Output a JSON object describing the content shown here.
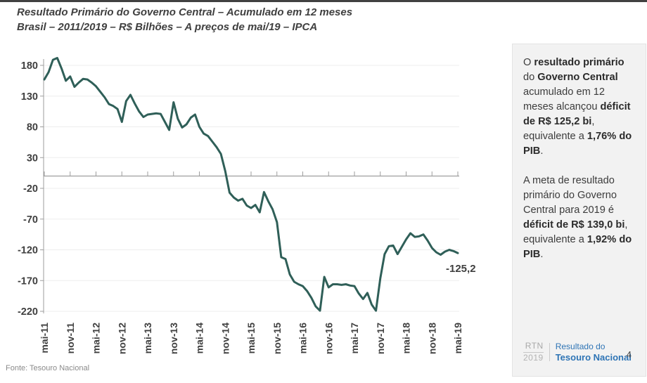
{
  "title": {
    "line1": "Resultado Primário do Governo Central – Acumulado em 12 meses",
    "line2": "Brasil – 2011/2019 – R$ Bilhões – A preços de mai/19 – IPCA"
  },
  "footer": {
    "source": "Fonte: Tesouro Nacional"
  },
  "page": {
    "number": "4"
  },
  "logo": {
    "acronym": "RTN",
    "year": "2019",
    "label_line1": "Resultado do",
    "label_line2": "Tesouro Nacional"
  },
  "sidebar": {
    "paragraphs": [
      {
        "segments": [
          {
            "t": "O ",
            "b": false
          },
          {
            "t": "resultado primário",
            "b": true
          },
          {
            "t": " do ",
            "b": false
          },
          {
            "t": "Governo Central",
            "b": true
          },
          {
            "t": " acumulado em 12 meses alcançou ",
            "b": false
          },
          {
            "t": "déficit de R$ 125,2 bi",
            "b": true
          },
          {
            "t": ", equivalente a ",
            "b": false
          },
          {
            "t": "1,76% do PIB",
            "b": true
          },
          {
            "t": ".",
            "b": false
          }
        ]
      },
      {
        "segments": [
          {
            "t": "A meta de resultado primário do Governo Central para 2019 é ",
            "b": false
          },
          {
            "t": "déficit de R$ 139,0 bi",
            "b": true
          },
          {
            "t": ", equivalente a ",
            "b": false
          },
          {
            "t": "1,92% do PIB",
            "b": true
          },
          {
            "t": ".",
            "b": false
          }
        ]
      }
    ]
  },
  "chart_data": {
    "type": "line",
    "title": "Resultado Primário do Governo Central – Acumulado em 12 meses",
    "subtitle": "Brasil – 2011/2019 – R$ Bilhões – A preços de mai/19 – IPCA",
    "ylabel": "R$ Bilhões (preços de mai/19 – IPCA)",
    "xlabel": "",
    "grid": "horizontal-faint",
    "legend": "none",
    "ylim": [
      -220,
      200
    ],
    "y_ticks": [
      180,
      130,
      80,
      30,
      -20,
      -70,
      -120,
      -170,
      -220
    ],
    "x_tick_labels": [
      "mai-11",
      "nov-11",
      "mai-12",
      "nov-12",
      "mai-13",
      "nov-13",
      "mai-14",
      "nov-14",
      "mai-15",
      "nov-15",
      "mai-16",
      "nov-16",
      "mai-17",
      "nov-17",
      "mai-18",
      "nov-18",
      "mai-19"
    ],
    "end_label": "-125,2",
    "line_color": "#2f5f58",
    "x": [
      "mai-11",
      "jun-11",
      "jul-11",
      "ago-11",
      "set-11",
      "out-11",
      "nov-11",
      "dez-11",
      "jan-12",
      "fev-12",
      "mar-12",
      "abr-12",
      "mai-12",
      "jun-12",
      "jul-12",
      "ago-12",
      "set-12",
      "out-12",
      "nov-12",
      "dez-12",
      "jan-13",
      "fev-13",
      "mar-13",
      "abr-13",
      "mai-13",
      "jun-13",
      "jul-13",
      "ago-13",
      "set-13",
      "out-13",
      "nov-13",
      "dez-13",
      "jan-14",
      "fev-14",
      "mar-14",
      "abr-14",
      "mai-14",
      "jun-14",
      "jul-14",
      "ago-14",
      "set-14",
      "out-14",
      "nov-14",
      "dez-14",
      "jan-15",
      "fev-15",
      "mar-15",
      "abr-15",
      "mai-15",
      "jun-15",
      "jul-15",
      "ago-15",
      "set-15",
      "out-15",
      "nov-15",
      "dez-15",
      "jan-16",
      "fev-16",
      "mar-16",
      "abr-16",
      "mai-16",
      "jun-16",
      "jul-16",
      "ago-16",
      "set-16",
      "out-16",
      "nov-16",
      "dez-16",
      "jan-17",
      "fev-17",
      "mar-17",
      "abr-17",
      "mai-17",
      "jun-17",
      "jul-17",
      "ago-17",
      "set-17",
      "out-17",
      "nov-17",
      "dez-17",
      "jan-18",
      "fev-18",
      "mar-18",
      "abr-18",
      "mai-18",
      "jun-18",
      "jul-18",
      "ago-18",
      "set-18",
      "out-18",
      "nov-18",
      "dez-18",
      "jan-19",
      "fev-19",
      "mar-19",
      "abr-19",
      "mai-19"
    ],
    "values": [
      157,
      169,
      189,
      192,
      175,
      155,
      162,
      145,
      152,
      158,
      157,
      152,
      146,
      137,
      128,
      117,
      114,
      109,
      88,
      122,
      132,
      118,
      105,
      96,
      100,
      101,
      102,
      101,
      88,
      75,
      120,
      93,
      79,
      84,
      95,
      100,
      80,
      69,
      65,
      56,
      47,
      36,
      8,
      -27,
      -35,
      -40,
      -37,
      -48,
      -52,
      -47,
      -59,
      -26,
      -41,
      -54,
      -75,
      -132,
      -135,
      -160,
      -172,
      -176,
      -179,
      -187,
      -198,
      -212,
      -219,
      -164,
      -181,
      -176,
      -176,
      -177,
      -176,
      -178,
      -179,
      -191,
      -200,
      -190,
      -209,
      -219,
      -166,
      -127,
      -114,
      -113,
      -127,
      -115,
      -103,
      -93,
      -99,
      -98,
      -95,
      -105,
      -117,
      -124,
      -128,
      -123,
      -120,
      -122,
      -125.2
    ]
  }
}
